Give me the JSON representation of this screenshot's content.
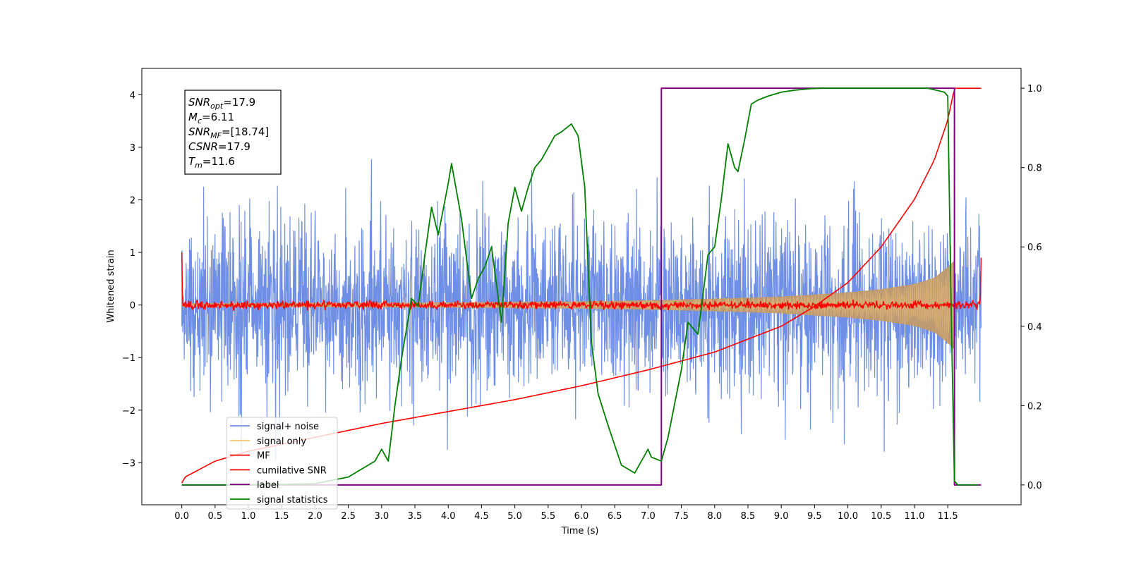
{
  "chart_data": {
    "type": "line",
    "title": "",
    "xlabel": "Time (s)",
    "ylabel": "Whitened strain",
    "xlim": [
      -0.6,
      12.6
    ],
    "ylim": [
      -3.8,
      4.5
    ],
    "y2lim": [
      -0.05,
      1.05
    ],
    "grid": false,
    "legend_position": "lower-left",
    "x_ticks": [
      0.0,
      0.5,
      1.0,
      1.5,
      2.0,
      2.5,
      3.0,
      3.5,
      4.0,
      4.5,
      5.0,
      5.5,
      6.0,
      6.5,
      7.0,
      7.5,
      8.0,
      8.5,
      9.0,
      9.5,
      10.0,
      10.5,
      11.0,
      11.5
    ],
    "x_tick_labels": [
      "0.0",
      "0.5",
      "1.0",
      "1.5",
      "2.0",
      "2.5",
      "3.0",
      "3.5",
      "4.0",
      "4.5",
      "5.0",
      "5.5",
      "6.0",
      "6.5",
      "7.0",
      "7.5",
      "8.0",
      "8.5",
      "9.0",
      "9.5",
      "10.0",
      "10.5",
      "11.0",
      "11.5"
    ],
    "y_ticks": [
      -3,
      -2,
      -1,
      0,
      1,
      2,
      3,
      4
    ],
    "y_tick_labels": [
      "−3",
      "−2",
      "−1",
      "0",
      "1",
      "2",
      "3",
      "4"
    ],
    "y2_ticks": [
      0.0,
      0.2,
      0.4,
      0.6,
      0.8,
      1.0
    ],
    "y2_tick_labels": [
      "0.0",
      "0.2",
      "0.4",
      "0.6",
      "0.8",
      "1.0"
    ],
    "series": [
      {
        "name": "signal+ noise",
        "axis": "left",
        "color": "#6f8fe6",
        "kind": "noise",
        "x_range": [
          0.0,
          12.0
        ],
        "typical_envelope": [
          -2.2,
          2.4
        ],
        "peak_min": -3.45,
        "peak_max": 3.55
      },
      {
        "name": "signal only",
        "axis": "left",
        "color": "#f4c67a",
        "kind": "chirp_envelope",
        "x": [
          0.0,
          2.0,
          4.0,
          6.0,
          7.0,
          8.0,
          9.0,
          10.0,
          10.5,
          11.0,
          11.3,
          11.5,
          11.6
        ],
        "amplitude": [
          0.03,
          0.04,
          0.05,
          0.07,
          0.09,
          0.12,
          0.16,
          0.24,
          0.3,
          0.4,
          0.52,
          0.72,
          0.85
        ]
      },
      {
        "name": "MF",
        "axis": "left",
        "color": "#ff0000",
        "kind": "mf_noise",
        "x_range": [
          0.0,
          12.0
        ],
        "amplitude": 0.08,
        "edge_values": [
          1.0,
          0.9
        ]
      },
      {
        "name": "cumilative SNR",
        "axis": "right",
        "color": "#ff0000",
        "x": [
          0.0,
          0.05,
          0.5,
          1.0,
          2.0,
          3.0,
          4.0,
          5.0,
          6.0,
          7.0,
          8.0,
          9.0,
          9.5,
          10.0,
          10.5,
          11.0,
          11.3,
          11.5,
          11.6,
          11.7,
          12.0
        ],
        "values": [
          0.005,
          0.02,
          0.06,
          0.085,
          0.12,
          0.155,
          0.185,
          0.215,
          0.25,
          0.29,
          0.335,
          0.4,
          0.45,
          0.51,
          0.6,
          0.72,
          0.82,
          0.92,
          1.0,
          1.0,
          1.0
        ]
      },
      {
        "name": "label",
        "axis": "right",
        "color": "#800080",
        "x": [
          0.0,
          7.2,
          7.2,
          11.6,
          11.6,
          12.0
        ],
        "values": [
          0.0,
          0.0,
          1.0,
          1.0,
          0.0,
          0.0
        ]
      },
      {
        "name": "signal statistics",
        "axis": "right",
        "color": "#008000",
        "x": [
          0.0,
          1.0,
          2.0,
          2.5,
          2.7,
          2.9,
          3.0,
          3.1,
          3.2,
          3.3,
          3.45,
          3.55,
          3.65,
          3.75,
          3.85,
          4.0,
          4.05,
          4.2,
          4.35,
          4.45,
          4.55,
          4.65,
          4.8,
          4.9,
          5.0,
          5.1,
          5.2,
          5.3,
          5.4,
          5.6,
          5.7,
          5.85,
          5.95,
          6.05,
          6.15,
          6.25,
          6.4,
          6.6,
          6.8,
          7.0,
          7.05,
          7.2,
          7.3,
          7.5,
          7.6,
          7.75,
          7.9,
          8.0,
          8.1,
          8.2,
          8.25,
          8.3,
          8.35,
          8.45,
          8.55,
          8.65,
          8.8,
          9.0,
          9.2,
          9.45,
          9.6,
          9.8,
          10.5,
          11.2,
          11.45,
          11.5,
          11.55,
          11.6,
          11.65,
          11.8,
          11.95
        ],
        "values": [
          0.0,
          0.0,
          0.003,
          0.02,
          0.04,
          0.06,
          0.09,
          0.06,
          0.2,
          0.32,
          0.47,
          0.45,
          0.58,
          0.7,
          0.63,
          0.76,
          0.81,
          0.67,
          0.47,
          0.52,
          0.55,
          0.6,
          0.41,
          0.66,
          0.75,
          0.69,
          0.75,
          0.8,
          0.82,
          0.88,
          0.89,
          0.91,
          0.88,
          0.75,
          0.36,
          0.23,
          0.15,
          0.05,
          0.03,
          0.09,
          0.07,
          0.06,
          0.12,
          0.29,
          0.41,
          0.38,
          0.58,
          0.6,
          0.72,
          0.86,
          0.83,
          0.8,
          0.79,
          0.87,
          0.96,
          0.97,
          0.98,
          0.99,
          0.995,
          0.999,
          1.0,
          1.0,
          1.0,
          1.0,
          0.99,
          0.98,
          0.45,
          0.01,
          0.0,
          0.0,
          0.0
        ]
      }
    ],
    "annotation": {
      "lines": [
        {
          "base": "SNR",
          "sub": "opt",
          "value": "=17.9"
        },
        {
          "base": "M",
          "sub": "c",
          "value": "=6.11"
        },
        {
          "base": "SNR",
          "sub": "MF",
          "value": "=[18.74]"
        },
        {
          "base": "CSNR",
          "sub": "",
          "value": "=17.9"
        },
        {
          "base": "T",
          "sub": "m",
          "value": "=11.6"
        }
      ]
    }
  }
}
